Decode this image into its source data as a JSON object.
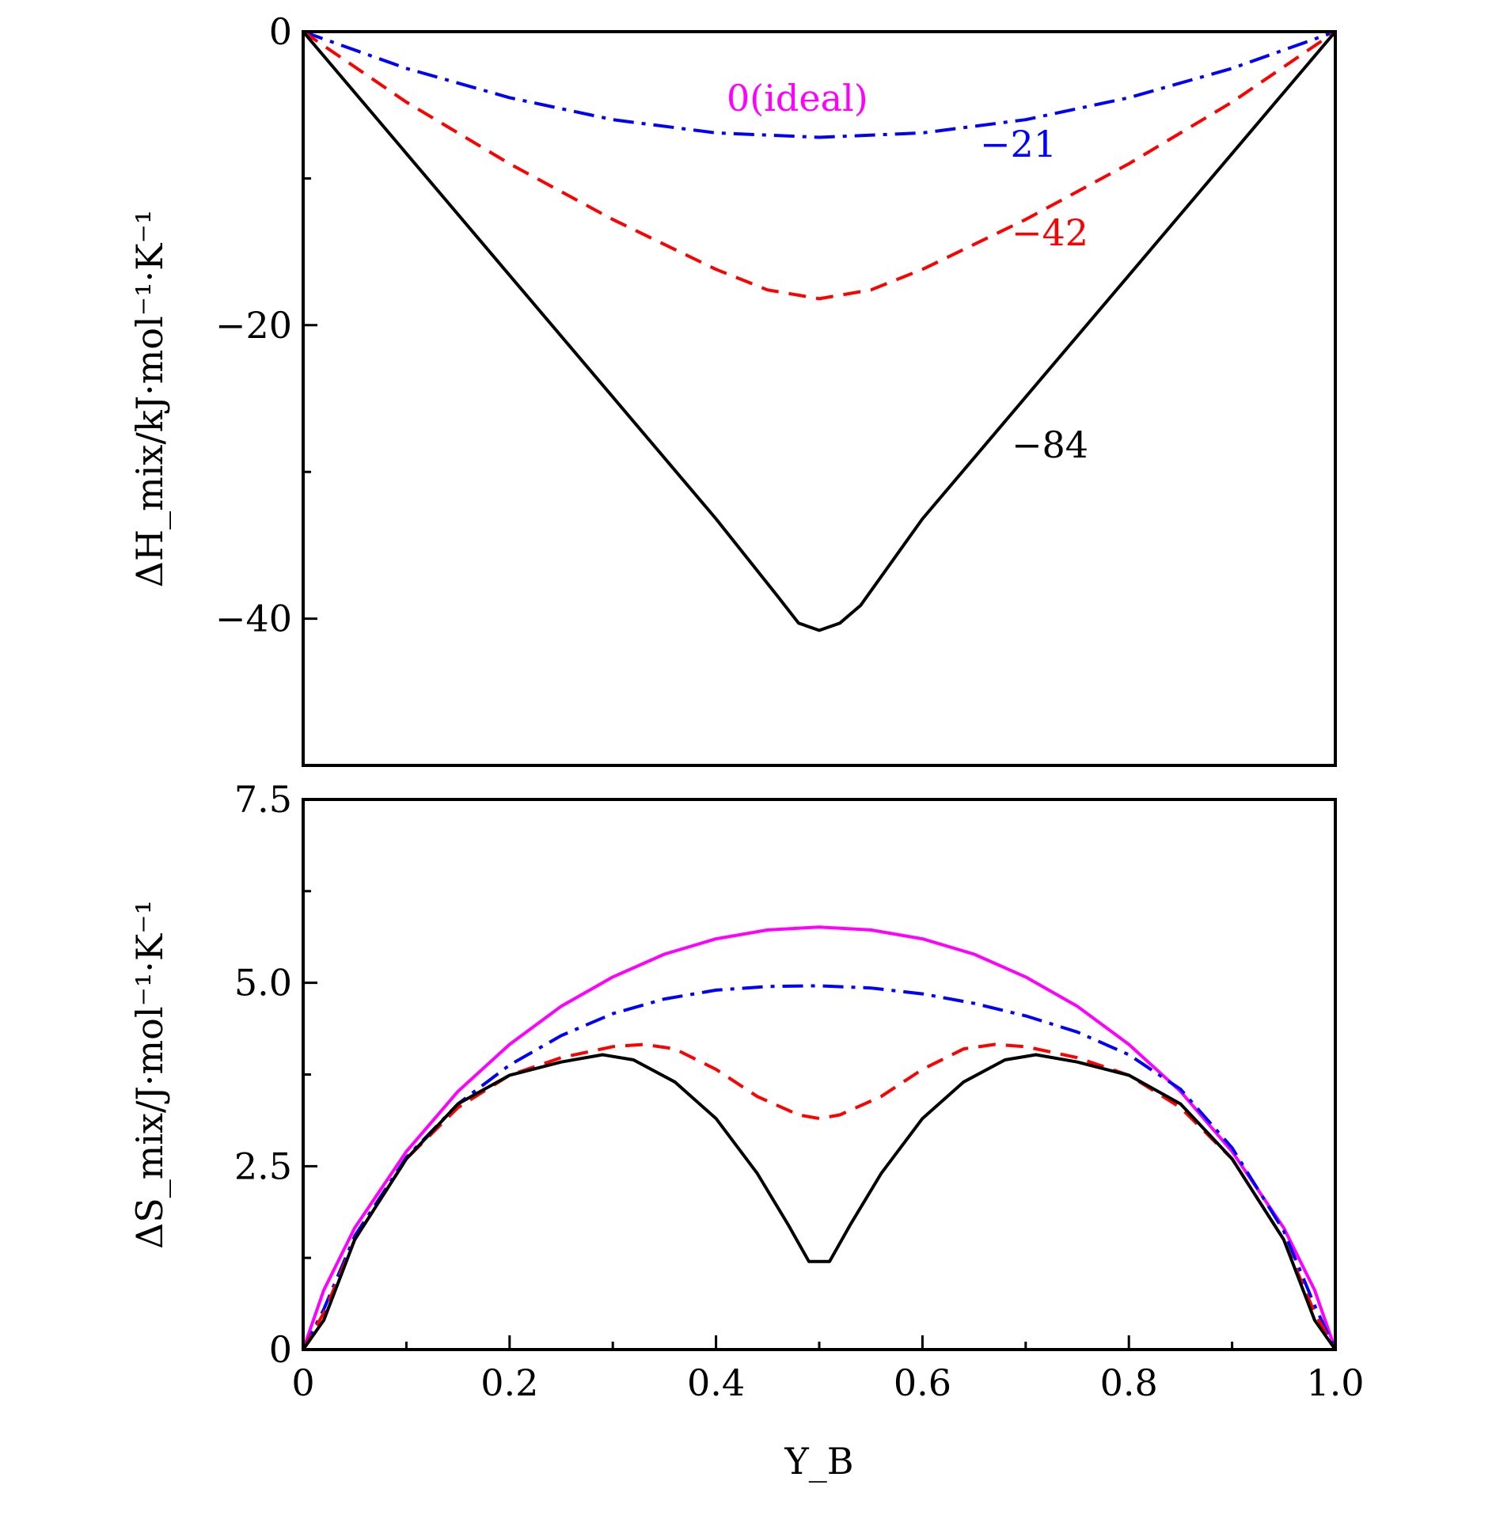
{
  "chart_data": [
    {
      "type": "line",
      "panel": "top",
      "ylabel": "ΔH_mix/kJ·mol⁻¹·K⁻¹",
      "xlim": [
        0,
        1.0
      ],
      "ylim": [
        -50,
        0
      ],
      "yticks": [
        0,
        -20,
        -40
      ],
      "ytick_labels": [
        "0",
        "−20",
        "−40"
      ],
      "minor_yticks": [
        -10,
        -30
      ],
      "series": [
        {
          "name": "0(ideal)",
          "color": "#ff00ff",
          "dash": "solid",
          "x": [
            0,
            1.0
          ],
          "y": [
            0,
            0
          ]
        },
        {
          "name": "−21",
          "color": "#0000ff",
          "dash": "dashdot",
          "x": [
            0,
            0.1,
            0.2,
            0.3,
            0.4,
            0.5,
            0.6,
            0.7,
            0.8,
            0.9,
            1.0
          ],
          "y": [
            0,
            -2.5,
            -4.5,
            -6.0,
            -6.9,
            -7.2,
            -6.9,
            -6.0,
            -4.5,
            -2.5,
            0
          ]
        },
        {
          "name": "−42",
          "color": "#ff0000",
          "dash": "dashed",
          "x": [
            0,
            0.1,
            0.2,
            0.3,
            0.4,
            0.45,
            0.5,
            0.55,
            0.6,
            0.7,
            0.8,
            0.9,
            1.0
          ],
          "y": [
            0,
            -4.8,
            -9.0,
            -12.8,
            -16.2,
            -17.6,
            -18.2,
            -17.6,
            -16.2,
            -12.8,
            -9.0,
            -4.8,
            0
          ]
        },
        {
          "name": "−84",
          "color": "#000000",
          "dash": "solid",
          "x": [
            0,
            0.1,
            0.2,
            0.3,
            0.4,
            0.46,
            0.48,
            0.5,
            0.52,
            0.54,
            0.6,
            0.7,
            0.8,
            0.9,
            1.0
          ],
          "y": [
            0,
            -8.3,
            -16.6,
            -24.9,
            -33.2,
            -38.5,
            -40.3,
            -40.8,
            -40.3,
            -39.1,
            -33.2,
            -24.9,
            -16.6,
            -8.3,
            0
          ]
        }
      ]
    },
    {
      "type": "line",
      "panel": "bottom",
      "xlabel": "Y_B",
      "ylabel": "ΔS_mix/J·mol⁻¹·K⁻¹",
      "xlim": [
        0,
        1.0
      ],
      "ylim": [
        0,
        7.5
      ],
      "xticks": [
        0,
        0.2,
        0.4,
        0.6,
        0.8,
        1.0
      ],
      "xtick_labels": [
        "0",
        "0.2",
        "0.4",
        "0.6",
        "0.8",
        "1.0"
      ],
      "minor_xticks": [
        0.1,
        0.3,
        0.5,
        0.7,
        0.9
      ],
      "yticks": [
        0,
        2.5,
        5.0,
        7.5
      ],
      "ytick_labels": [
        "0",
        "2.5",
        "5.0",
        "7.5"
      ],
      "minor_yticks": [
        1.25,
        3.75,
        6.25
      ],
      "series": [
        {
          "name": "0(ideal)",
          "color": "#ff00ff",
          "dash": "solid",
          "x": [
            0,
            0.02,
            0.05,
            0.1,
            0.15,
            0.2,
            0.25,
            0.3,
            0.35,
            0.4,
            0.45,
            0.5,
            0.55,
            0.6,
            0.65,
            0.7,
            0.75,
            0.8,
            0.85,
            0.9,
            0.95,
            0.98,
            1.0
          ],
          "y": [
            0,
            0.81,
            1.66,
            2.7,
            3.52,
            4.16,
            4.68,
            5.08,
            5.39,
            5.6,
            5.72,
            5.76,
            5.72,
            5.6,
            5.39,
            5.08,
            4.68,
            4.16,
            3.52,
            2.7,
            1.66,
            0.81,
            0
          ]
        },
        {
          "name": "−21",
          "color": "#0000ff",
          "dash": "dashdot",
          "x": [
            0,
            0.02,
            0.05,
            0.1,
            0.15,
            0.2,
            0.25,
            0.3,
            0.35,
            0.4,
            0.45,
            0.5,
            0.55,
            0.6,
            0.65,
            0.7,
            0.75,
            0.8,
            0.85,
            0.9,
            0.95,
            0.98,
            1.0
          ],
          "y": [
            0,
            0.55,
            1.55,
            2.62,
            3.35,
            3.88,
            4.28,
            4.58,
            4.78,
            4.9,
            4.95,
            4.96,
            4.93,
            4.85,
            4.72,
            4.55,
            4.33,
            4.02,
            3.55,
            2.75,
            1.62,
            0.6,
            0
          ]
        },
        {
          "name": "−42",
          "color": "#ff0000",
          "dash": "dashed",
          "x": [
            0,
            0.02,
            0.05,
            0.1,
            0.15,
            0.2,
            0.25,
            0.3,
            0.33,
            0.36,
            0.4,
            0.44,
            0.48,
            0.5,
            0.52,
            0.56,
            0.6,
            0.64,
            0.67,
            0.7,
            0.75,
            0.8,
            0.85,
            0.9,
            0.95,
            0.98,
            1.0
          ],
          "y": [
            0,
            0.5,
            1.5,
            2.6,
            3.3,
            3.74,
            3.98,
            4.13,
            4.16,
            4.1,
            3.82,
            3.45,
            3.2,
            3.15,
            3.2,
            3.45,
            3.82,
            4.1,
            4.16,
            4.13,
            3.98,
            3.74,
            3.3,
            2.6,
            1.5,
            0.5,
            0
          ]
        },
        {
          "name": "−84",
          "color": "#000000",
          "dash": "solid",
          "x": [
            0,
            0.02,
            0.05,
            0.1,
            0.15,
            0.2,
            0.25,
            0.29,
            0.32,
            0.36,
            0.4,
            0.44,
            0.47,
            0.49,
            0.5,
            0.51,
            0.53,
            0.56,
            0.6,
            0.64,
            0.68,
            0.71,
            0.75,
            0.8,
            0.85,
            0.9,
            0.95,
            0.98,
            1.0
          ],
          "y": [
            0,
            0.4,
            1.5,
            2.6,
            3.35,
            3.74,
            3.92,
            4.02,
            3.95,
            3.65,
            3.15,
            2.4,
            1.7,
            1.2,
            1.2,
            1.2,
            1.7,
            2.4,
            3.15,
            3.65,
            3.95,
            4.02,
            3.92,
            3.74,
            3.35,
            2.6,
            1.5,
            0.4,
            0
          ]
        }
      ]
    }
  ]
}
